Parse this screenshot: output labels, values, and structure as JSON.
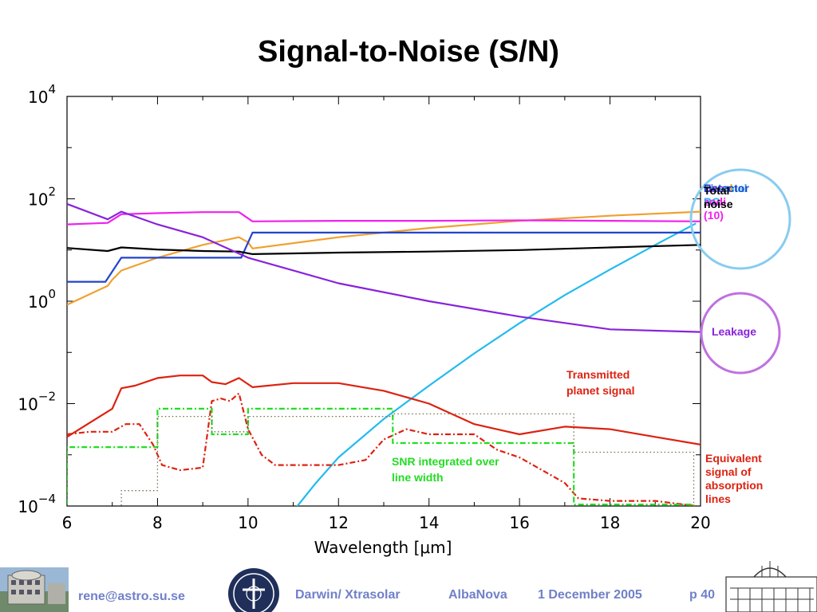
{
  "slide": {
    "title": "Signal-to-Noise (S/N)"
  },
  "chart_data": {
    "type": "line",
    "xlabel": "Wavelength [μm]",
    "xlim": [
      6,
      20
    ],
    "ylim_log10": [
      -4,
      4
    ],
    "y_scale": "log",
    "x_ticks": [
      "6",
      "8",
      "10",
      "12",
      "14",
      "16",
      "18",
      "20"
    ],
    "y_ticks": [
      {
        "base": "10",
        "exp": "4",
        "value": 4
      },
      {
        "base": "10",
        "exp": "2",
        "value": 2
      },
      {
        "base": "10",
        "exp": "0",
        "value": 0
      },
      {
        "base": "10",
        "exp": "−2",
        "value": -2
      },
      {
        "base": "10",
        "exp": "−4",
        "value": -4
      }
    ],
    "series": [
      {
        "name": "Local zodi",
        "color": "#f0a030",
        "style": "solid",
        "x": [
          6,
          6.9,
          7.0,
          7.2,
          8,
          9,
          9.8,
          10.0,
          10.1,
          12,
          14,
          16,
          18,
          20
        ],
        "log10_y": [
          -0.07,
          0.3,
          0.42,
          0.6,
          0.85,
          1.1,
          1.25,
          1.15,
          1.03,
          1.25,
          1.43,
          1.57,
          1.67,
          1.75
        ]
      },
      {
        "name": "Thermal BG",
        "color": "#22bbee",
        "style": "solid",
        "x": [
          11.0,
          11.5,
          12,
          13,
          14,
          15,
          16,
          17,
          18,
          19,
          19.9
        ],
        "log10_y": [
          -4.1,
          -3.55,
          -3.05,
          -2.3,
          -1.65,
          -1.02,
          -0.43,
          0.12,
          0.62,
          1.1,
          1.52
        ]
      },
      {
        "name": "Exo zodi (10)",
        "color": "#ee22ee",
        "style": "solid",
        "x": [
          6,
          6.9,
          7.2,
          8,
          9,
          9.8,
          10.1,
          12,
          14,
          16,
          18,
          20
        ],
        "log10_y": [
          1.5,
          1.53,
          1.7,
          1.72,
          1.74,
          1.74,
          1.56,
          1.57,
          1.57,
          1.58,
          1.57,
          1.56
        ]
      },
      {
        "name": "Detector",
        "color": "#2244cc",
        "style": "solid",
        "x": [
          6,
          6.85,
          6.85,
          7.2,
          7.2,
          9.85,
          9.85,
          10.1,
          10.1,
          20
        ],
        "log10_y": [
          0.38,
          0.38,
          0.38,
          0.85,
          0.85,
          0.85,
          0.85,
          1.34,
          1.34,
          1.34
        ]
      },
      {
        "name": "Total noise",
        "color": "#000000",
        "style": "solid",
        "x": [
          6,
          6.9,
          7.2,
          8,
          9,
          9.8,
          10.1,
          12,
          14,
          16,
          18,
          20
        ],
        "log10_y": [
          1.04,
          0.98,
          1.05,
          1.01,
          0.98,
          0.97,
          0.92,
          0.95,
          0.97,
          1.0,
          1.05,
          1.1
        ]
      },
      {
        "name": "Leakage",
        "color": "#8822dd",
        "style": "solid",
        "x": [
          6,
          6.9,
          7.2,
          8,
          9,
          10,
          12,
          14,
          16,
          18,
          20
        ],
        "log10_y": [
          1.9,
          1.6,
          1.75,
          1.5,
          1.25,
          0.85,
          0.35,
          0.0,
          -0.3,
          -0.55,
          -0.6
        ]
      },
      {
        "name": "Transmitted planet signal",
        "color": "#dd2211",
        "style": "solid",
        "x": [
          6,
          7.0,
          7.2,
          7.5,
          8,
          8.5,
          9,
          9.2,
          9.5,
          9.8,
          10.1,
          11,
          12,
          13,
          14,
          15,
          16,
          17,
          18,
          19,
          20
        ],
        "log10_y": [
          -2.65,
          -2.1,
          -1.7,
          -1.65,
          -1.5,
          -1.45,
          -1.45,
          -1.58,
          -1.62,
          -1.5,
          -1.68,
          -1.6,
          -1.6,
          -1.75,
          -2.0,
          -2.4,
          -2.6,
          -2.45,
          -2.5,
          -2.65,
          -2.8
        ]
      },
      {
        "name": "Equivalent signal of absorption lines",
        "color": "#dd2211",
        "style": "dashdot",
        "x": [
          6,
          6.5,
          7.0,
          7.3,
          7.6,
          7.9,
          8.1,
          8.5,
          9.0,
          9.2,
          9.4,
          9.6,
          9.8,
          10.0,
          10.3,
          10.6,
          11,
          12,
          12.6,
          13,
          13.5,
          14,
          14.5,
          15,
          15.5,
          16,
          16.5,
          17,
          17.3,
          18,
          19,
          19.9
        ],
        "log10_y": [
          -2.6,
          -2.55,
          -2.55,
          -2.4,
          -2.4,
          -2.8,
          -3.2,
          -3.3,
          -3.25,
          -1.95,
          -1.9,
          -1.95,
          -1.8,
          -2.5,
          -3.0,
          -3.2,
          -3.2,
          -3.2,
          -3.1,
          -2.7,
          -2.5,
          -2.6,
          -2.6,
          -2.6,
          -2.9,
          -3.05,
          -3.3,
          -3.55,
          -3.85,
          -3.9,
          -3.9,
          -4.0
        ]
      },
      {
        "name": "SNR integrated over line width",
        "color": "#22dd22",
        "style": "dashdot",
        "x": [
          6,
          6,
          8,
          8,
          9.2,
          9.2,
          10,
          10,
          13.2,
          13.2,
          17.2,
          17.2,
          19.85,
          19.85
        ],
        "log10_y": [
          -4.2,
          -2.85,
          -2.85,
          -2.1,
          -2.1,
          -2.6,
          -2.6,
          -2.1,
          -2.1,
          -2.77,
          -2.77,
          -3.97,
          -3.97,
          -4.2
        ]
      },
      {
        "name": "Dotted reference",
        "color": "#7a6a4a",
        "style": "dotted",
        "x": [
          7.2,
          7.2,
          8,
          8,
          9.2,
          9.2,
          10,
          10,
          13.2,
          13.2,
          17.2,
          17.2,
          19.85,
          19.85
        ],
        "log10_y": [
          -4.2,
          -3.7,
          -3.7,
          -2.25,
          -2.25,
          -2.55,
          -2.55,
          -2.25,
          -2.25,
          -2.2,
          -2.2,
          -2.95,
          -2.95,
          -4.2
        ]
      }
    ]
  },
  "legend": {
    "local_zodi": "Local zodi",
    "thermal_bg": "Thermal BG",
    "exo_zodi": "Exo zodi (10)",
    "detector": "Detector",
    "total_noise": "Total noise",
    "leakage": "Leakage"
  },
  "annotations": {
    "planet_line1": "Transmitted",
    "planet_line2": "planet signal",
    "snr_line1": "SNR integrated over",
    "snr_line2": "line width",
    "equiv_line1": "Equivalent",
    "equiv_line2": "signal of",
    "equiv_line3": "absorption",
    "equiv_line4": "lines"
  },
  "colors": {
    "local_zodi": "#f0a030",
    "thermal_bg": "#22bbee",
    "exo_zodi": "#ee22ee",
    "detector": "#2244cc",
    "total_noise": "#000000",
    "leakage": "#8822dd",
    "planet": "#dd2211",
    "snr": "#22dd22",
    "footer_text": "#7080c8",
    "circle_blue": "#88ccf0",
    "circle_purple": "#c070e0"
  },
  "footer": {
    "email": "rene@astro.su.se",
    "project": "Darwin/ Xtrasolar",
    "venue": "AlbaNova",
    "date": "1 December 2005",
    "page": "p  40"
  }
}
